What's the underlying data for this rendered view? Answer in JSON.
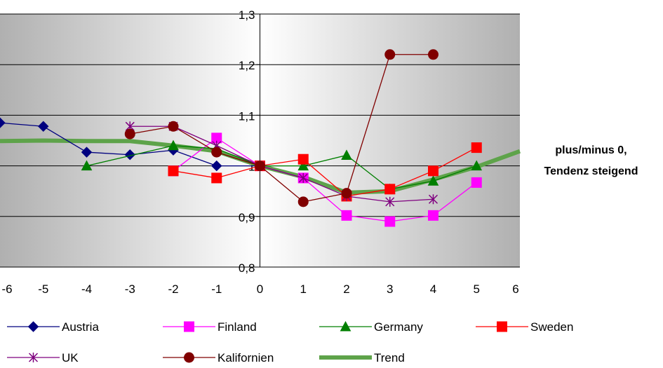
{
  "chart_data": {
    "type": "line",
    "x": [
      -6,
      -5,
      -4,
      -3,
      -2,
      -1,
      0,
      1,
      2,
      3,
      4,
      5,
      6
    ],
    "xlim": [
      -6,
      6
    ],
    "ylim": [
      0.8,
      1.3
    ],
    "x_ticks": [
      "-6",
      "-5",
      "-4",
      "-3",
      "-2",
      "-1",
      "0",
      "1",
      "2",
      "3",
      "4",
      "5",
      "6"
    ],
    "y_ticks": [
      "0,8",
      "0,9",
      "1",
      "1,1",
      "1,2",
      "1,3"
    ],
    "grid": "horizontal",
    "legend_position": "bottom",
    "annotation_lines": [
      "plus/minus 0,",
      "Tendenz steigend"
    ],
    "series": [
      {
        "name": "Austria",
        "color": "#00007f",
        "marker": "diamond",
        "points": [
          [
            -6,
            1.085
          ],
          [
            -5,
            1.078
          ],
          [
            -4,
            1.027
          ],
          [
            -3,
            1.022
          ],
          [
            -2,
            1.031
          ],
          [
            -1,
            1.0
          ],
          [
            0,
            1.0
          ]
        ]
      },
      {
        "name": "Finland",
        "color": "#ff00ff",
        "marker": "square",
        "points": [
          [
            -2,
            0.99
          ],
          [
            -1,
            1.055
          ],
          [
            0,
            1.0
          ],
          [
            1,
            0.976
          ],
          [
            2,
            0.902
          ],
          [
            3,
            0.89
          ],
          [
            4,
            0.902
          ],
          [
            5,
            0.967
          ]
        ]
      },
      {
        "name": "Germany",
        "color": "#007f00",
        "marker": "triangle",
        "points": [
          [
            -4,
            1.0
          ],
          [
            -2,
            1.04
          ],
          [
            -1,
            1.034
          ],
          [
            0,
            1.0
          ],
          [
            1,
            1.0
          ],
          [
            2,
            1.021
          ],
          [
            3,
            0.954
          ],
          [
            4,
            0.97
          ],
          [
            5,
            1.0
          ]
        ]
      },
      {
        "name": "Sweden",
        "color": "#ff0000",
        "marker": "square",
        "points": [
          [
            -2,
            0.99
          ],
          [
            -1,
            0.976
          ],
          [
            0,
            1.0
          ],
          [
            1,
            1.013
          ],
          [
            2,
            0.94
          ],
          [
            3,
            0.954
          ],
          [
            4,
            0.99
          ],
          [
            5,
            1.036
          ]
        ]
      },
      {
        "name": "UK",
        "color": "#7f007f",
        "marker": "star",
        "points": [
          [
            -3,
            1.078
          ],
          [
            -2,
            1.078
          ],
          [
            -1,
            1.04
          ],
          [
            0,
            1.0
          ],
          [
            1,
            0.976
          ],
          [
            2,
            0.94
          ],
          [
            3,
            0.929
          ],
          [
            4,
            0.934
          ]
        ]
      },
      {
        "name": "Kalifornien",
        "color": "#800000",
        "marker": "circle",
        "points": [
          [
            -3,
            1.063
          ],
          [
            -2,
            1.078
          ],
          [
            -1,
            1.027
          ],
          [
            0,
            1.0
          ],
          [
            1,
            0.929
          ],
          [
            2,
            0.946
          ],
          [
            3,
            1.22
          ],
          [
            4,
            1.22
          ]
        ]
      },
      {
        "name": "Trend",
        "color": "#5ea34a",
        "marker": "none",
        "thick": true,
        "points": [
          [
            -6,
            1.049
          ],
          [
            -5,
            1.05
          ],
          [
            -4,
            1.049
          ],
          [
            -3,
            1.049
          ],
          [
            -2,
            1.04
          ],
          [
            -1,
            1.029
          ],
          [
            0,
            1.0
          ],
          [
            1,
            0.978
          ],
          [
            2,
            0.947
          ],
          [
            3,
            0.95
          ],
          [
            4,
            0.973
          ],
          [
            5,
            0.998
          ],
          [
            6,
            1.029
          ]
        ]
      }
    ]
  }
}
